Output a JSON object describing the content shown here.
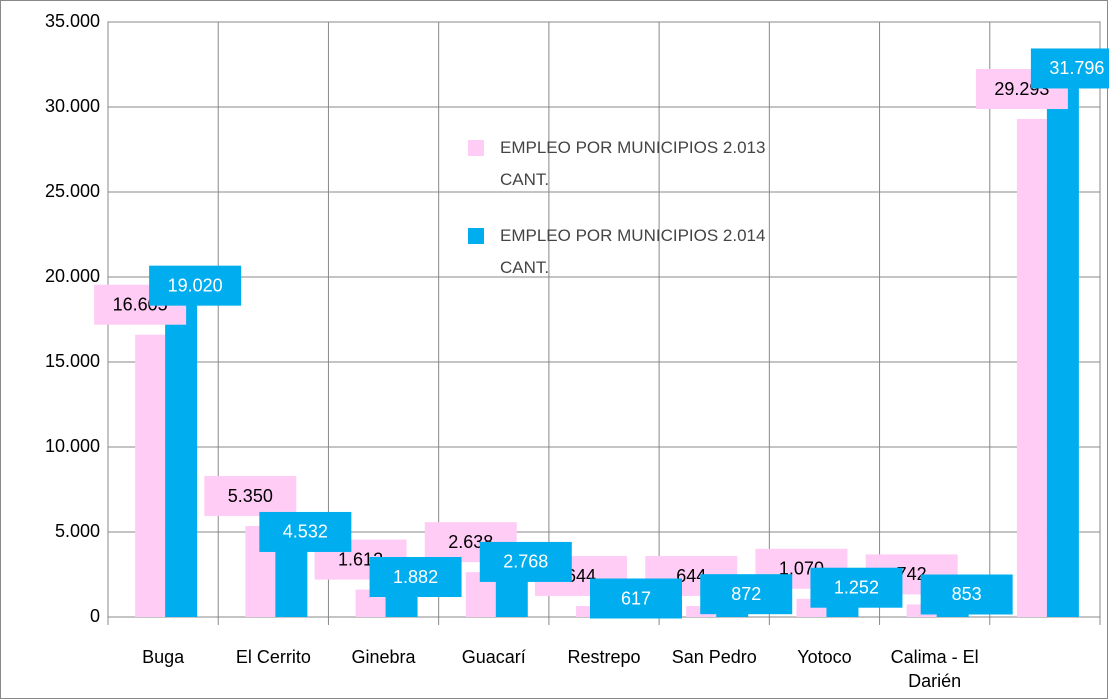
{
  "chart_data": {
    "type": "bar",
    "categories": [
      "Buga",
      "El Cerrito",
      "Ginebra",
      "Guacarí",
      "Restrepo",
      "San Pedro",
      "Yotoco",
      "Calima - El Darién",
      null
    ],
    "series": [
      {
        "name": "EMPLEO POR MUNICIPIOS 2.013 CANT.",
        "color": "#ffccf5",
        "values": [
          16605,
          5350,
          1612,
          2638,
          644,
          644,
          1070,
          742,
          29293
        ],
        "value_labels": [
          "16.605",
          "5.350",
          "1.612",
          "2.638",
          "644",
          "644",
          "1.070",
          "742",
          "29.293"
        ]
      },
      {
        "name": "EMPLEO POR MUNICIPIOS 2.014 CANT.",
        "color": "#00aeef",
        "values": [
          19020,
          4532,
          1882,
          2768,
          617,
          872,
          1252,
          853,
          31796
        ],
        "value_labels": [
          "19.020",
          "4.532",
          "1.882",
          "2.768",
          "617",
          "872",
          "1.252",
          "853",
          "31.796"
        ]
      }
    ],
    "ylim": [
      0,
      35000
    ],
    "yticks": [
      0,
      {
        "value": 5000,
        "label": "5.000"
      },
      {
        "value": 10000,
        "label": "10.000"
      },
      {
        "value": 15000,
        "label": "15.000"
      },
      {
        "value": 20000,
        "label": "20.000"
      },
      {
        "value": 25000,
        "label": "25.000"
      },
      {
        "value": 30000,
        "label": "30.000"
      },
      {
        "value": 35000,
        "label": "35.000"
      }
    ],
    "grid": true
  }
}
